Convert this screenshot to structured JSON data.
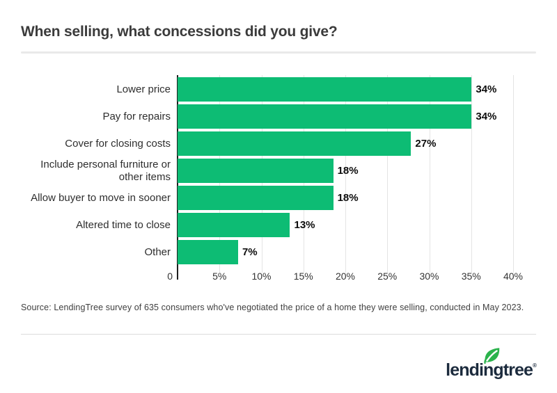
{
  "title": "When selling, what concessions did you give?",
  "source": "Source: LendingTree survey of 635 consumers who've negotiated the price of a home they were selling, conducted in May 2023.",
  "logo": {
    "text": "lendingtree",
    "registered": "®"
  },
  "colors": {
    "bar": "#0dbc74",
    "leaf": "#2bb34c",
    "logo_navy": "#1c2b3d",
    "axis": "#1f1f1f",
    "gridline": "#e4e4e4"
  },
  "chart_data": {
    "type": "bar",
    "orientation": "horizontal",
    "title": "When selling, what concessions did you give?",
    "categories": [
      "Lower price",
      "Pay for repairs",
      "Cover for closing costs",
      "Include personal furniture or other items",
      "Allow buyer to move in sooner",
      "Altered time to close",
      "Other"
    ],
    "values": [
      34,
      34,
      27,
      18,
      18,
      13,
      7
    ],
    "value_labels": [
      "34%",
      "34%",
      "27%",
      "18%",
      "18%",
      "13%",
      "7%"
    ],
    "x_ticks": [
      "0",
      "5%",
      "10%",
      "15%",
      "20%",
      "25%",
      "30%",
      "35%",
      "40%"
    ],
    "xlim": [
      0,
      40
    ],
    "grid": true,
    "xlabel": "",
    "ylabel": ""
  }
}
